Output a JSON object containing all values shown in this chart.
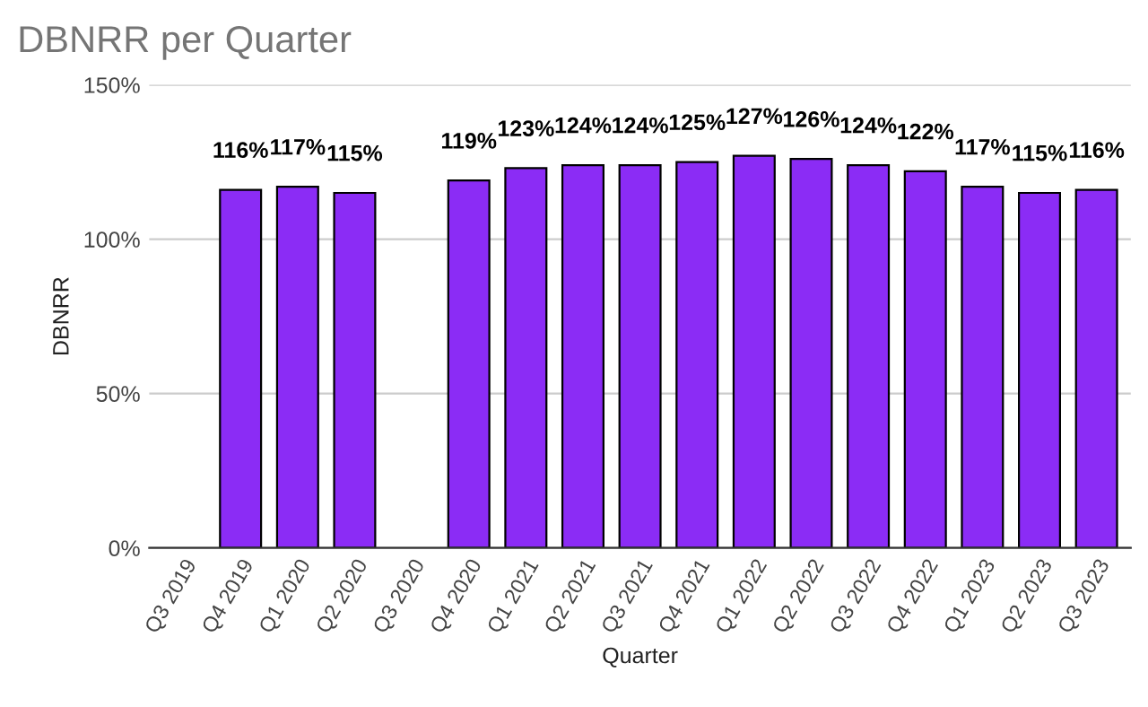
{
  "chart_data": {
    "type": "bar",
    "title": "DBNRR per Quarter",
    "xlabel": "Quarter",
    "ylabel": "DBNRR",
    "categories": [
      "Q3 2019",
      "Q4 2019",
      "Q1 2020",
      "Q2 2020",
      "Q3 2020",
      "Q4 2020",
      "Q1 2021",
      "Q2 2021",
      "Q3 2021",
      "Q4 2021",
      "Q1 2022",
      "Q2 2022",
      "Q3 2022",
      "Q4 2022",
      "Q1 2023",
      "Q2 2023",
      "Q3 2023"
    ],
    "values": [
      null,
      116,
      117,
      115,
      null,
      119,
      123,
      124,
      124,
      125,
      127,
      126,
      124,
      122,
      117,
      115,
      116
    ],
    "value_labels": [
      null,
      "116%",
      "117%",
      "115%",
      null,
      "119%",
      "123%",
      "124%",
      "124%",
      "125%",
      "127%",
      "126%",
      "124%",
      "122%",
      "117%",
      "115%",
      "116%"
    ],
    "color": "#8b2cf5",
    "ylim": [
      0,
      150
    ],
    "yticks": [
      {
        "value": 0,
        "label": "0%"
      },
      {
        "value": 50,
        "label": "50%"
      },
      {
        "value": 100,
        "label": "100%"
      },
      {
        "value": 150,
        "label": "150%"
      }
    ],
    "grid": "y",
    "legend": false
  }
}
